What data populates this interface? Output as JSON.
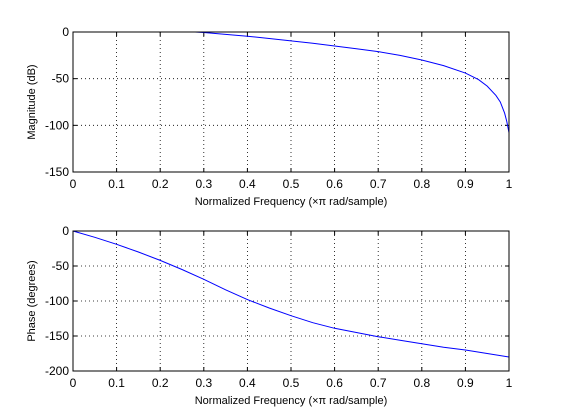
{
  "colors": {
    "series": "#0000ff",
    "axes": "#000000",
    "background": "#ffffff"
  },
  "chart_data": [
    {
      "type": "line",
      "title": "",
      "xlabel": "Normalized Frequency  (×π rad/sample)",
      "ylabel": "Magnitude (dB)",
      "xlim": [
        0,
        1
      ],
      "ylim": [
        -150,
        0
      ],
      "xticks": [
        0,
        0.1,
        0.2,
        0.3,
        0.4,
        0.5,
        0.6,
        0.7,
        0.8,
        0.9,
        1
      ],
      "yticks": [
        -150,
        -100,
        -50,
        0
      ],
      "grid": true,
      "series": [
        {
          "color": "#0000ff",
          "x": [
            0.28,
            0.3,
            0.35,
            0.4,
            0.45,
            0.5,
            0.55,
            0.6,
            0.65,
            0.7,
            0.75,
            0.8,
            0.85,
            0.9,
            0.93,
            0.95,
            0.97,
            0.98,
            0.99,
            0.995,
            1.0
          ],
          "y": [
            0,
            -0.5,
            -2.5,
            -4.5,
            -7,
            -9.5,
            -12,
            -15,
            -18,
            -21,
            -25,
            -30,
            -36,
            -44,
            -51,
            -58,
            -68,
            -75,
            -87,
            -96,
            -108
          ]
        }
      ]
    },
    {
      "type": "line",
      "title": "",
      "xlabel": "Normalized Frequency  (×π rad/sample)",
      "ylabel": "Phase (degrees)",
      "xlim": [
        0,
        1
      ],
      "ylim": [
        -200,
        0
      ],
      "xticks": [
        0,
        0.1,
        0.2,
        0.3,
        0.4,
        0.5,
        0.6,
        0.7,
        0.8,
        0.9,
        1
      ],
      "yticks": [
        -200,
        -150,
        -100,
        -50,
        0
      ],
      "grid": true,
      "series": [
        {
          "color": "#0000ff",
          "x": [
            0,
            0.05,
            0.1,
            0.15,
            0.2,
            0.25,
            0.3,
            0.35,
            0.4,
            0.45,
            0.5,
            0.55,
            0.6,
            0.65,
            0.7,
            0.75,
            0.8,
            0.85,
            0.9,
            0.95,
            1.0
          ],
          "y": [
            0,
            -9,
            -19,
            -30,
            -42,
            -55,
            -69,
            -84,
            -98,
            -110,
            -121,
            -131,
            -139,
            -145,
            -151,
            -156,
            -161,
            -166,
            -170,
            -175,
            -180
          ]
        }
      ]
    }
  ]
}
